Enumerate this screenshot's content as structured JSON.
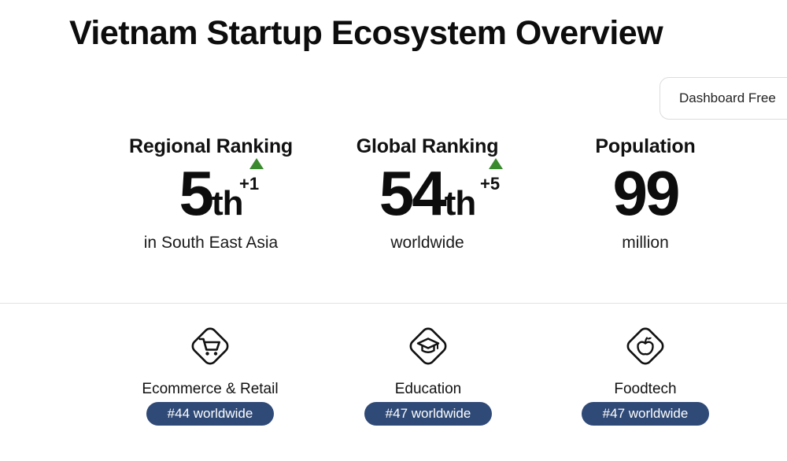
{
  "title": "Vietnam Startup Ecosystem Overview",
  "dashboard_button": "Dashboard Free",
  "stats": [
    {
      "label": "Regional Ranking",
      "value": "5",
      "suffix": "th",
      "change": "+1",
      "change_direction": "up",
      "subtext": "in South East Asia"
    },
    {
      "label": "Global Ranking",
      "value": "54",
      "suffix": "th",
      "change": "+5",
      "change_direction": "up",
      "subtext": "worldwide"
    },
    {
      "label": "Population",
      "value": "99",
      "subtext": "million"
    }
  ],
  "categories": [
    {
      "icon": "shopping-cart-icon",
      "label": "Ecommerce & Retail",
      "rank": "#44 worldwide"
    },
    {
      "icon": "graduation-cap-icon",
      "label": "Education",
      "rank": "#47 worldwide"
    },
    {
      "icon": "apple-icon",
      "label": "Foodtech",
      "rank": "#47 worldwide"
    }
  ],
  "colors": {
    "up_arrow": "#3a8a2e",
    "badge_background": "#2f4a77",
    "badge_text": "#ffffff"
  }
}
